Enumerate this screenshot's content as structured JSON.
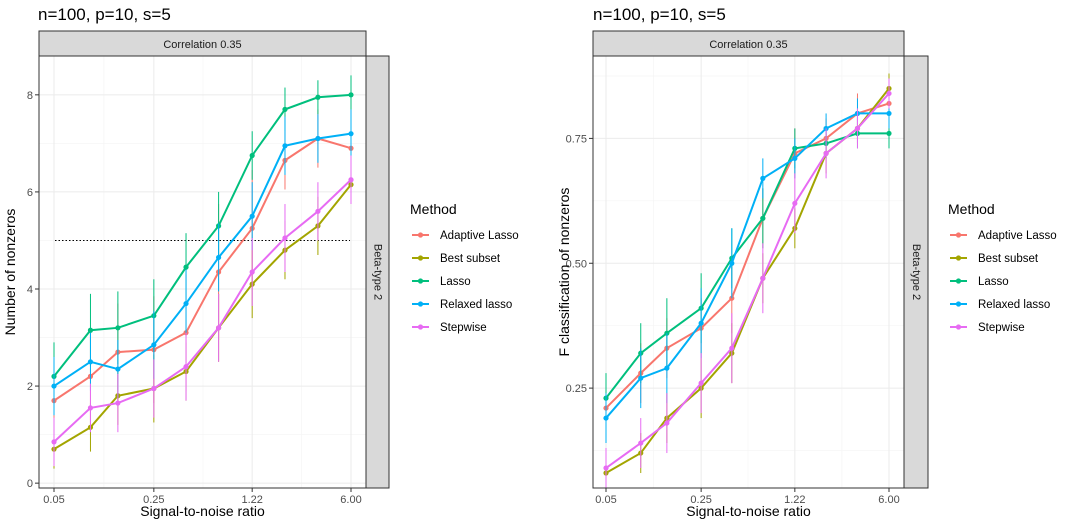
{
  "chart_data": [
    {
      "type": "line",
      "title": "n=100, p=10, s=5",
      "facet_top": "Correlation 0.35",
      "facet_right": "Beta-type 2",
      "xlabel": "Signal-to-noise ratio",
      "ylabel": "Number of nonzeros",
      "x_scale": "log",
      "x": [
        0.05,
        0.09,
        0.14,
        0.25,
        0.42,
        0.71,
        1.22,
        2.07,
        3.52,
        6.0
      ],
      "x_tick_labels": [
        "0.05",
        "0.25",
        "1.22",
        "6.00"
      ],
      "x_tick_values": [
        0.05,
        0.25,
        1.22,
        6.0
      ],
      "y_ticks": [
        0,
        2,
        4,
        6,
        8
      ],
      "ylim": [
        -0.1,
        8.8
      ],
      "reference_line": {
        "y": 5,
        "style": "dotted"
      },
      "legend_title": "Method",
      "series": [
        {
          "name": "Adaptive Lasso",
          "color": "#F8766D",
          "values": [
            1.7,
            2.2,
            2.7,
            2.75,
            3.1,
            4.35,
            5.25,
            6.65,
            7.1,
            6.9
          ],
          "err": [
            0.9,
            0.9,
            1.0,
            1.1,
            1.2,
            1.4,
            1.2,
            0.6,
            0.6,
            0.7
          ]
        },
        {
          "name": "Best subset",
          "color": "#A3A500",
          "values": [
            0.7,
            1.15,
            1.8,
            1.95,
            2.3,
            3.2,
            4.1,
            4.8,
            5.3,
            6.15
          ],
          "err": [
            0.4,
            0.5,
            0.6,
            0.7,
            0.6,
            0.7,
            0.7,
            0.6,
            0.6,
            0.4
          ]
        },
        {
          "name": "Lasso",
          "color": "#00BF7D",
          "values": [
            2.2,
            3.15,
            3.2,
            3.45,
            4.45,
            5.3,
            6.75,
            7.7,
            7.95,
            8.0
          ],
          "err": [
            0.7,
            0.75,
            0.75,
            0.75,
            0.7,
            0.7,
            0.5,
            0.45,
            0.35,
            0.4
          ]
        },
        {
          "name": "Relaxed lasso",
          "color": "#00B0F6",
          "values": [
            2.0,
            2.5,
            2.35,
            2.85,
            3.7,
            4.65,
            5.5,
            6.95,
            7.1,
            7.2
          ],
          "err": [
            0.6,
            0.6,
            0.6,
            0.7,
            0.7,
            0.7,
            0.7,
            0.6,
            0.5,
            0.5
          ]
        },
        {
          "name": "Stepwise",
          "color": "#E76BF3",
          "values": [
            0.85,
            1.55,
            1.65,
            1.95,
            2.4,
            3.2,
            4.35,
            5.05,
            5.6,
            6.25
          ],
          "err": [
            0.5,
            0.5,
            0.6,
            0.6,
            0.7,
            0.7,
            0.7,
            0.7,
            0.6,
            0.5
          ]
        }
      ]
    },
    {
      "type": "line",
      "title": "n=100, p=10, s=5",
      "facet_top": "Correlation 0.35",
      "facet_right": "Beta-type 2",
      "xlabel": "Signal-to-noise ratio",
      "ylabel": "F classification of nonzeros",
      "x_scale": "log",
      "x": [
        0.05,
        0.09,
        0.14,
        0.25,
        0.42,
        0.71,
        1.22,
        2.07,
        3.52,
        6.0
      ],
      "x_tick_labels": [
        "0.05",
        "0.25",
        "1.22",
        "6.00"
      ],
      "x_tick_values": [
        0.05,
        0.25,
        1.22,
        6.0
      ],
      "y_ticks": [
        0.25,
        0.5,
        0.75
      ],
      "y_tick_labels": [
        "0.25",
        "0.50",
        "0.75"
      ],
      "ylim": [
        0.05,
        0.915
      ],
      "legend_title": "Method",
      "series": [
        {
          "name": "Adaptive Lasso",
          "color": "#F8766D",
          "values": [
            0.21,
            0.28,
            0.33,
            0.37,
            0.43,
            0.59,
            0.72,
            0.75,
            0.8,
            0.82
          ],
          "err": [
            0.05,
            0.06,
            0.06,
            0.06,
            0.07,
            0.06,
            0.05,
            0.04,
            0.04,
            0.04
          ]
        },
        {
          "name": "Best subset",
          "color": "#A3A500",
          "values": [
            0.08,
            0.12,
            0.19,
            0.25,
            0.32,
            0.47,
            0.57,
            0.72,
            0.77,
            0.85
          ],
          "err": [
            0.03,
            0.04,
            0.05,
            0.06,
            0.06,
            0.05,
            0.04,
            0.04,
            0.03,
            0.03
          ]
        },
        {
          "name": "Lasso",
          "color": "#00BF7D",
          "values": [
            0.23,
            0.32,
            0.36,
            0.41,
            0.51,
            0.59,
            0.73,
            0.74,
            0.76,
            0.76
          ],
          "err": [
            0.05,
            0.06,
            0.07,
            0.07,
            0.06,
            0.06,
            0.04,
            0.03,
            0.03,
            0.03
          ]
        },
        {
          "name": "Relaxed lasso",
          "color": "#00B0F6",
          "values": [
            0.19,
            0.27,
            0.29,
            0.38,
            0.5,
            0.67,
            0.71,
            0.77,
            0.8,
            0.8
          ],
          "err": [
            0.05,
            0.06,
            0.07,
            0.07,
            0.07,
            0.04,
            0.04,
            0.03,
            0.03,
            0.03
          ]
        },
        {
          "name": "Stepwise",
          "color": "#E76BF3",
          "values": [
            0.09,
            0.14,
            0.18,
            0.26,
            0.33,
            0.47,
            0.62,
            0.72,
            0.77,
            0.84
          ],
          "err": [
            0.04,
            0.05,
            0.06,
            0.06,
            0.07,
            0.07,
            0.06,
            0.05,
            0.04,
            0.03
          ]
        }
      ]
    }
  ],
  "colors": {
    "panel_background": "#ffffff",
    "grid_major": "#ebebeb",
    "grid_minor": "#f5f5f5",
    "panel_border": "#333333",
    "strip_fill": "#d9d9d9",
    "tick_text": "#4d4d4d"
  }
}
